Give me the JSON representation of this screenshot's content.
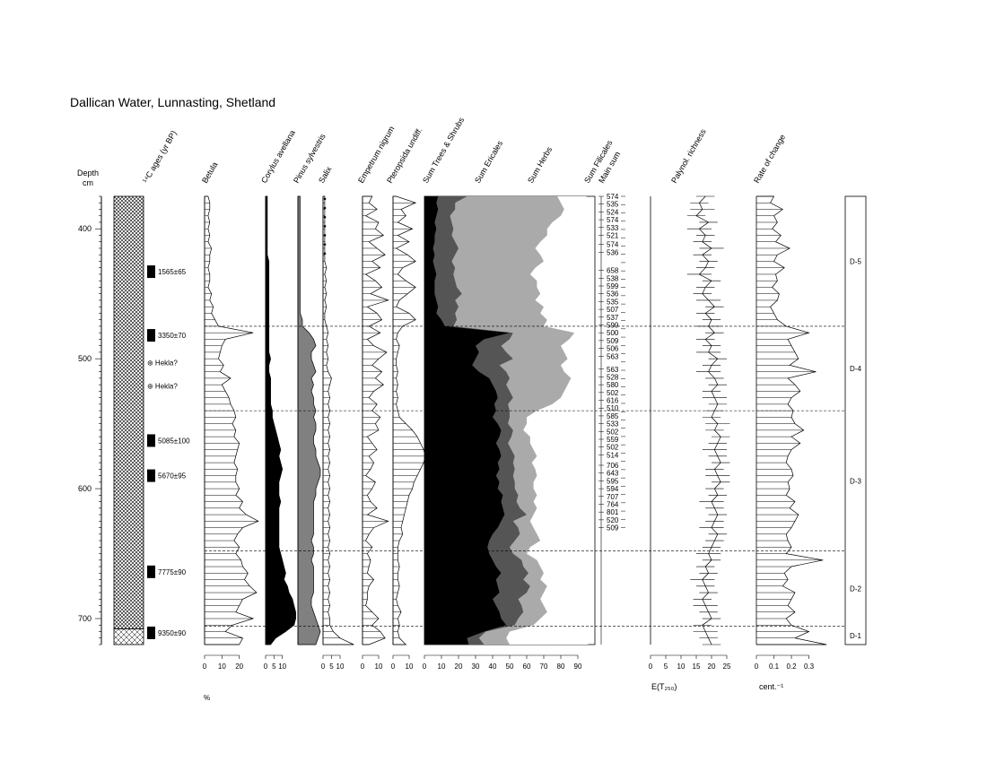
{
  "chart_data": {
    "type": "area",
    "title": "Dallican Water, Lunnasting, Shetland",
    "depth_axis": {
      "label_line1": "Depth",
      "label_line2": "cm",
      "ylim": [
        375,
        720
      ],
      "ticks": [
        400,
        500,
        600,
        700
      ]
    },
    "c14_header": "¹⁴C ages (yr BP)",
    "samples_depth": [
      375,
      380,
      385,
      390,
      395,
      400,
      405,
      410,
      415,
      420,
      425,
      430,
      435,
      440,
      445,
      450,
      455,
      460,
      465,
      470,
      475,
      480,
      485,
      490,
      495,
      500,
      505,
      510,
      515,
      520,
      525,
      530,
      535,
      540,
      545,
      550,
      555,
      560,
      565,
      570,
      575,
      580,
      585,
      590,
      595,
      600,
      605,
      610,
      615,
      620,
      625,
      630,
      635,
      640,
      645,
      650,
      655,
      660,
      665,
      670,
      675,
      680,
      685,
      690,
      695,
      700,
      705,
      710,
      715,
      720
    ],
    "series": [
      {
        "name": "Betula",
        "max": 30,
        "ticks": [
          0,
          10,
          20
        ],
        "values": [
          2,
          3,
          3,
          2,
          3,
          2,
          3,
          2,
          4,
          3,
          3,
          2,
          3,
          3,
          2,
          4,
          3,
          5,
          4,
          6,
          8,
          28,
          12,
          10,
          9,
          8,
          11,
          9,
          15,
          10,
          12,
          14,
          15,
          17,
          18,
          16,
          18,
          17,
          20,
          19,
          18,
          17,
          19,
          18,
          18,
          20,
          18,
          22,
          20,
          24,
          31,
          22,
          19,
          17,
          20,
          18,
          21,
          22,
          25,
          23,
          26,
          30,
          22,
          20,
          18,
          28,
          16,
          12,
          22,
          20
        ]
      },
      {
        "name": "Corylus avellana",
        "max": 15,
        "ticks": [
          0,
          5,
          10
        ],
        "values": [
          1,
          1,
          1,
          1,
          1,
          1,
          1,
          1,
          1,
          1,
          2,
          2,
          2,
          2,
          2,
          2,
          2,
          2,
          2,
          2,
          2,
          2,
          2,
          2,
          2,
          3,
          2,
          2,
          3,
          3,
          3,
          3,
          3,
          4,
          4,
          5,
          6,
          7,
          8,
          9,
          8,
          9,
          10,
          9,
          8,
          8,
          8,
          9,
          8,
          8,
          8,
          8,
          8,
          8,
          8,
          9,
          10,
          11,
          12,
          11,
          13,
          14,
          16,
          17,
          18,
          18,
          17,
          12,
          6,
          3
        ]
      },
      {
        "name": "Pinus sylvestris",
        "max": 8,
        "ticks": [],
        "values": [
          1,
          1,
          1,
          1,
          1,
          1,
          1,
          1,
          1,
          1,
          1,
          1,
          1,
          1,
          1,
          1,
          1,
          1,
          1,
          2,
          2,
          5,
          7,
          8,
          6,
          6,
          7,
          8,
          6,
          7,
          6,
          7,
          7,
          8,
          7,
          8,
          8,
          7,
          7,
          8,
          8,
          9,
          10,
          10,
          9,
          8,
          8,
          7,
          7,
          7,
          7,
          7,
          7,
          6,
          7,
          7,
          6,
          7,
          7,
          7,
          7,
          7,
          6,
          6,
          7,
          8,
          9,
          10,
          9,
          8
        ]
      },
      {
        "name": "Salix",
        "max": 20,
        "ticks": [
          0,
          5,
          10
        ],
        "values": [
          1,
          1,
          1,
          1,
          1,
          1,
          1,
          1,
          1,
          1,
          1,
          2,
          1,
          2,
          1,
          2,
          1,
          2,
          1,
          1,
          2,
          3,
          2,
          3,
          2,
          3,
          2,
          3,
          5,
          4,
          3,
          4,
          3,
          4,
          3,
          4,
          3,
          4,
          3,
          4,
          3,
          4,
          3,
          4,
          3,
          4,
          3,
          4,
          3,
          4,
          3,
          4,
          3,
          4,
          3,
          4,
          3,
          4,
          3,
          4,
          3,
          4,
          3,
          4,
          3,
          4,
          4,
          6,
          10,
          18
        ]
      },
      {
        "name": "Empetrum nigrum",
        "max": 20,
        "ticks": [
          0,
          10
        ],
        "values": [
          6,
          4,
          9,
          2,
          10,
          8,
          13,
          4,
          9,
          14,
          6,
          11,
          2,
          8,
          12,
          5,
          16,
          3,
          9,
          12,
          4,
          11,
          3,
          7,
          15,
          10,
          6,
          12,
          8,
          13,
          7,
          4,
          9,
          6,
          11,
          8,
          10,
          3,
          6,
          9,
          4,
          7,
          5,
          2,
          8,
          6,
          3,
          5,
          9,
          3,
          16,
          7,
          4,
          2,
          6,
          3,
          5,
          4,
          3,
          7,
          4,
          3,
          3,
          2,
          6,
          10,
          6,
          11,
          14,
          4
        ]
      },
      {
        "name": "Pteropsida undiff.",
        "max": 20,
        "ticks": [
          0,
          10
        ],
        "values": [
          2,
          14,
          5,
          8,
          3,
          12,
          3,
          10,
          2,
          9,
          14,
          6,
          3,
          8,
          14,
          9,
          4,
          2,
          10,
          14,
          6,
          3,
          2,
          4,
          3,
          2,
          2,
          3,
          2,
          3,
          2,
          3,
          2,
          3,
          4,
          8,
          12,
          15,
          17,
          19,
          20,
          19,
          17,
          15,
          13,
          12,
          10,
          9,
          8,
          7,
          6,
          5,
          6,
          4,
          3,
          3,
          3,
          4,
          3,
          3,
          4,
          3,
          2,
          3,
          5,
          3,
          4,
          3,
          4,
          8
        ]
      },
      {
        "name": "Sum Trees & Shrubs",
        "values": [
          8,
          7,
          8,
          7,
          6,
          7,
          6,
          6,
          5,
          6,
          5,
          6,
          7,
          6,
          6,
          6,
          7,
          8,
          7,
          10,
          12,
          50,
          35,
          30,
          32,
          30,
          28,
          32,
          38,
          40,
          42,
          43,
          41,
          42,
          40,
          43,
          45,
          44,
          42,
          44,
          45,
          43,
          44,
          42,
          44,
          43,
          46,
          45,
          46,
          47,
          45,
          43,
          40,
          38,
          37,
          38,
          40,
          42,
          45,
          42,
          43,
          44,
          40,
          42,
          44,
          45,
          48,
          35,
          25,
          26
        ]
      },
      {
        "name": "Sum Ericales",
        "values": [
          25,
          18,
          18,
          15,
          16,
          17,
          16,
          18,
          20,
          18,
          16,
          18,
          17,
          18,
          19,
          22,
          18,
          20,
          18,
          19,
          17,
          52,
          50,
          45,
          48,
          52,
          44,
          48,
          50,
          48,
          50,
          52,
          49,
          50,
          50,
          49,
          52,
          51,
          49,
          51,
          53,
          52,
          53,
          52,
          53,
          53,
          55,
          54,
          56,
          60,
          52,
          55,
          56,
          53,
          50,
          52,
          57,
          58,
          61,
          58,
          62,
          60,
          55,
          57,
          58,
          55,
          53,
          36,
          32,
          35
        ]
      },
      {
        "name": "Sum Herbs",
        "values": [
          78,
          80,
          82,
          80,
          75,
          72,
          72,
          68,
          65,
          68,
          70,
          65,
          62,
          66,
          66,
          68,
          65,
          70,
          68,
          72,
          70,
          88,
          85,
          80,
          82,
          84,
          80,
          82,
          86,
          84,
          82,
          80,
          75,
          66,
          60,
          60,
          58,
          62,
          62,
          64,
          66,
          63,
          65,
          66,
          64,
          64,
          66,
          64,
          66,
          64,
          62,
          64,
          66,
          68,
          62,
          60,
          66,
          68,
          70,
          68,
          72,
          70,
          68,
          70,
          72,
          68,
          64,
          50,
          48,
          50
        ]
      },
      {
        "name": "Sum Filicales",
        "values": [
          95,
          96,
          96,
          96,
          95,
          95,
          96,
          95,
          96,
          96,
          96,
          95,
          96,
          96,
          96,
          96,
          96,
          96,
          96,
          96,
          96,
          98,
          97,
          97,
          97,
          97,
          97,
          97,
          97,
          97,
          97,
          97,
          96,
          96,
          96,
          96,
          96,
          96,
          96,
          96,
          96,
          96,
          96,
          96,
          96,
          96,
          96,
          96,
          96,
          96,
          96,
          96,
          96,
          96,
          96,
          96,
          96,
          96,
          96,
          96,
          96,
          96,
          96,
          96,
          96,
          96,
          96,
          96,
          96,
          96
        ]
      }
    ],
    "sum_axis": {
      "label": "",
      "ticks": [
        0,
        10,
        20,
        30,
        40,
        50,
        60,
        70,
        80,
        90
      ]
    },
    "percent_unit": "%",
    "main_sum_header_line1": "Sum Filicales",
    "main_sum_header_line2": "Main sum",
    "main_sum": [
      {
        "d": 375,
        "v": "574"
      },
      {
        "d": 381,
        "v": "535"
      },
      {
        "d": 387,
        "v": "524"
      },
      {
        "d": 393,
        "v": "574"
      },
      {
        "d": 399,
        "v": "533"
      },
      {
        "d": 405,
        "v": "521"
      },
      {
        "d": 412,
        "v": "574"
      },
      {
        "d": 418,
        "v": "536"
      },
      {
        "d": 432,
        "v": "658"
      },
      {
        "d": 438,
        "v": "538"
      },
      {
        "d": 444,
        "v": "599"
      },
      {
        "d": 450,
        "v": "536"
      },
      {
        "d": 456,
        "v": "535"
      },
      {
        "d": 462,
        "v": "507"
      },
      {
        "d": 468,
        "v": "537"
      },
      {
        "d": 474,
        "v": "599"
      },
      {
        "d": 480,
        "v": "500"
      },
      {
        "d": 486,
        "v": "509"
      },
      {
        "d": 492,
        "v": "506"
      },
      {
        "d": 498,
        "v": "563"
      },
      {
        "d": 508,
        "v": "563"
      },
      {
        "d": 514,
        "v": "528"
      },
      {
        "d": 520,
        "v": "580"
      },
      {
        "d": 526,
        "v": "502"
      },
      {
        "d": 532,
        "v": "616"
      },
      {
        "d": 538,
        "v": "510"
      },
      {
        "d": 544,
        "v": "585"
      },
      {
        "d": 550,
        "v": "533"
      },
      {
        "d": 556,
        "v": "502"
      },
      {
        "d": 562,
        "v": "559"
      },
      {
        "d": 568,
        "v": "502"
      },
      {
        "d": 574,
        "v": "514"
      },
      {
        "d": 582,
        "v": "706"
      },
      {
        "d": 588,
        "v": "643"
      },
      {
        "d": 594,
        "v": "595"
      },
      {
        "d": 600,
        "v": "594"
      },
      {
        "d": 606,
        "v": "707"
      },
      {
        "d": 612,
        "v": "764"
      },
      {
        "d": 618,
        "v": "801"
      },
      {
        "d": 624,
        "v": "520"
      },
      {
        "d": 630,
        "v": "509"
      }
    ],
    "palyno_header": "Palynol. richness",
    "palyno_axis": {
      "ticks": [
        0,
        5,
        10,
        15,
        20,
        25
      ],
      "xlim": [
        0,
        30
      ],
      "label": "E(T₂₅₀)"
    },
    "palyno_values": [
      18,
      16,
      17,
      15,
      19,
      16,
      18,
      17,
      20,
      17,
      19,
      18,
      16,
      20,
      18,
      17,
      19,
      21,
      18,
      20,
      19,
      21,
      18,
      20,
      19,
      22,
      20,
      19,
      21,
      22,
      20,
      21,
      22,
      21,
      20,
      22,
      21,
      23,
      22,
      21,
      22,
      23,
      21,
      22,
      23,
      21,
      22,
      20,
      21,
      22,
      21,
      20,
      22,
      21,
      20,
      19,
      20,
      18,
      19,
      17,
      18,
      19,
      17,
      18,
      19,
      20,
      17,
      18,
      19,
      20
    ],
    "palyno_errors": [
      3,
      3,
      4,
      3,
      3,
      4,
      3,
      3,
      4,
      3,
      3,
      3,
      4,
      3,
      3,
      3,
      4,
      3,
      3,
      3,
      4,
      3,
      3,
      3,
      4,
      3,
      3,
      4,
      3,
      3,
      3,
      4,
      3,
      3,
      3,
      4,
      3,
      3,
      3,
      4,
      3,
      3,
      3,
      4,
      3,
      3,
      3,
      4,
      3,
      3,
      3,
      4,
      3,
      3,
      3,
      4,
      3,
      3,
      3,
      4,
      3,
      3,
      3,
      4,
      3,
      3,
      3,
      4,
      3,
      3
    ],
    "roc_header": "Rate of change",
    "roc_axis": {
      "ticks": [
        "0",
        "0.1",
        "0.2",
        "0.3"
      ],
      "xlim": [
        0,
        0.42
      ],
      "label": "cent.⁻¹"
    },
    "roc_values": [
      0.1,
      0.08,
      0.15,
      0.1,
      0.12,
      0.09,
      0.14,
      0.11,
      0.19,
      0.12,
      0.1,
      0.16,
      0.11,
      0.12,
      0.09,
      0.13,
      0.12,
      0.08,
      0.1,
      0.12,
      0.17,
      0.3,
      0.18,
      0.2,
      0.22,
      0.24,
      0.19,
      0.34,
      0.18,
      0.22,
      0.25,
      0.2,
      0.18,
      0.21,
      0.2,
      0.22,
      0.27,
      0.2,
      0.25,
      0.2,
      0.18,
      0.17,
      0.2,
      0.21,
      0.18,
      0.19,
      0.17,
      0.22,
      0.19,
      0.24,
      0.22,
      0.2,
      0.17,
      0.18,
      0.2,
      0.17,
      0.38,
      0.2,
      0.16,
      0.18,
      0.15,
      0.22,
      0.2,
      0.18,
      0.22,
      0.17,
      0.2,
      0.3,
      0.22,
      0.4
    ],
    "c14_dates": [
      {
        "d": 433,
        "label": "1565±65",
        "marker": true
      },
      {
        "d": 482,
        "label": "3350±70",
        "marker": true
      },
      {
        "d": 503,
        "label": "⊛ Hekla?",
        "marker": false
      },
      {
        "d": 521,
        "label": "⊛ Hekla?",
        "marker": false
      },
      {
        "d": 563,
        "label": "5085±100",
        "marker": true
      },
      {
        "d": 590,
        "label": "5670±95",
        "marker": true
      },
      {
        "d": 664,
        "label": "7775±90",
        "marker": true
      },
      {
        "d": 711,
        "label": "9350±90",
        "marker": true
      }
    ],
    "zone_boundaries": [
      475,
      540,
      648,
      706
    ],
    "zones": [
      {
        "label": "D-5",
        "from": 375,
        "to": 475
      },
      {
        "label": "D-4",
        "from": 475,
        "to": 540
      },
      {
        "label": "D-3",
        "from": 540,
        "to": 648
      },
      {
        "label": "D-2",
        "from": 648,
        "to": 706
      },
      {
        "label": "D-1",
        "from": 706,
        "to": 720
      }
    ]
  }
}
